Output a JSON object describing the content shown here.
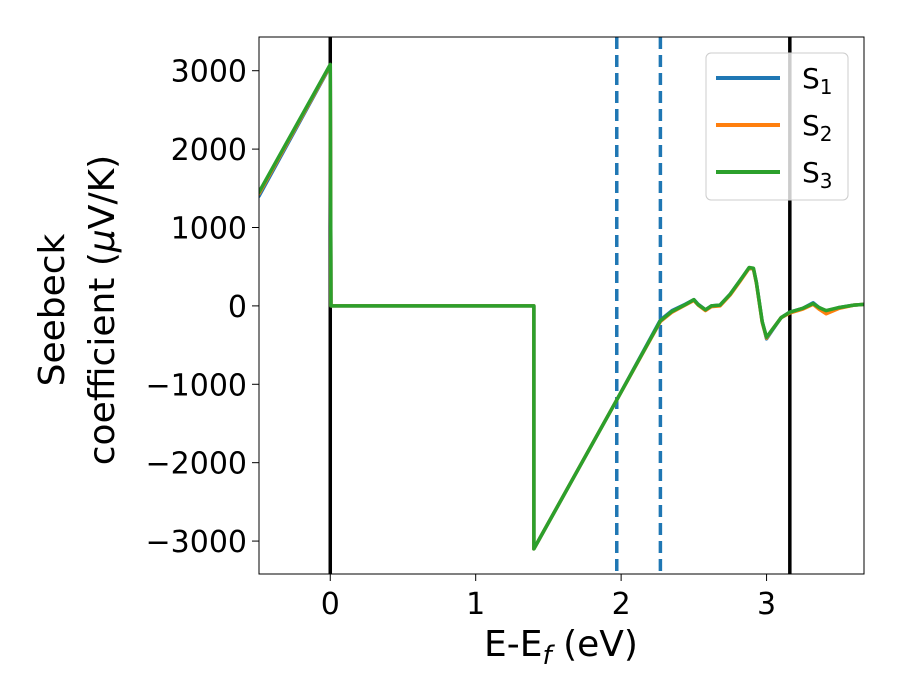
{
  "chart_data": {
    "type": "line",
    "title": "",
    "xlabel": "E-E",
    "xlabel_sub": "f",
    "xlabel_unit": " (eV)",
    "ylabel_line1": "Seebeck",
    "ylabel_line2": "coefficient  (",
    "ylabel_mu": "μ",
    "ylabel_unit": "V/K)",
    "xlim": [
      -0.49,
      3.67
    ],
    "ylim": [
      -3420,
      3430
    ],
    "xticks": [
      0,
      1,
      2,
      3
    ],
    "xtick_labels": [
      "0",
      "1",
      "2",
      "3"
    ],
    "yticks": [
      -3000,
      -2000,
      -1000,
      0,
      1000,
      2000,
      3000
    ],
    "ytick_labels": [
      "−3000",
      "−2000",
      "−1000",
      "0",
      "1000",
      "2000",
      "3000"
    ],
    "grid": false,
    "legend_position": "top-right",
    "vlines": [
      {
        "x": 0.0,
        "style": "solid",
        "color": "#000000"
      },
      {
        "x": 1.97,
        "style": "dashed",
        "color": "#1f77b4"
      },
      {
        "x": 2.27,
        "style": "dashed",
        "color": "#1f77b4"
      },
      {
        "x": 3.16,
        "style": "solid",
        "color": "#000000"
      }
    ],
    "series": [
      {
        "name": "S",
        "sub": "1",
        "color": "#1f77b4",
        "x": [
          -0.49,
          0.0,
          0.005,
          1.4,
          1.4,
          1.97,
          2.27,
          2.35,
          2.44,
          2.5,
          2.53,
          2.58,
          2.62,
          2.68,
          2.75,
          2.82,
          2.88,
          2.91,
          2.93,
          2.97,
          3.0,
          3.04,
          3.1,
          3.16,
          3.25,
          3.32,
          3.36,
          3.41,
          3.5,
          3.6,
          3.67
        ],
        "y": [
          1400,
          3060,
          0,
          0,
          -3100,
          -1200,
          -180,
          -60,
          20,
          80,
          20,
          -50,
          0,
          10,
          150,
          330,
          480,
          470,
          300,
          -200,
          -420,
          -310,
          -150,
          -80,
          -30,
          40,
          -20,
          -70,
          -20,
          10,
          20
        ]
      },
      {
        "name": "S",
        "sub": "2",
        "color": "#ff7f0e",
        "x": [
          -0.49,
          0.0,
          0.005,
          1.4,
          1.4,
          1.97,
          2.27,
          2.35,
          2.44,
          2.5,
          2.53,
          2.58,
          2.62,
          2.68,
          2.75,
          2.82,
          2.88,
          2.91,
          2.93,
          2.97,
          3.0,
          3.04,
          3.1,
          3.16,
          3.25,
          3.32,
          3.36,
          3.41,
          3.5,
          3.6,
          3.67
        ],
        "y": [
          1430,
          3070,
          0,
          0,
          -3100,
          -1200,
          -200,
          -80,
          10,
          70,
          10,
          -60,
          -10,
          0,
          140,
          320,
          480,
          470,
          290,
          -210,
          -410,
          -300,
          -150,
          -90,
          -40,
          20,
          -40,
          -100,
          -30,
          10,
          20
        ]
      },
      {
        "name": "S",
        "sub": "3",
        "color": "#2ca02c",
        "x": [
          -0.49,
          0.0,
          0.005,
          1.4,
          1.4,
          1.97,
          2.27,
          2.35,
          2.44,
          2.5,
          2.53,
          2.58,
          2.62,
          2.68,
          2.75,
          2.82,
          2.88,
          2.91,
          2.93,
          2.97,
          3.0,
          3.04,
          3.1,
          3.16,
          3.25,
          3.32,
          3.36,
          3.41,
          3.5,
          3.6,
          3.67
        ],
        "y": [
          1450,
          3080,
          0,
          0,
          -3100,
          -1200,
          -190,
          -70,
          15,
          80,
          15,
          -50,
          0,
          10,
          150,
          330,
          490,
          480,
          300,
          -200,
          -400,
          -300,
          -150,
          -80,
          -30,
          30,
          -20,
          -60,
          -20,
          10,
          20
        ]
      }
    ]
  }
}
